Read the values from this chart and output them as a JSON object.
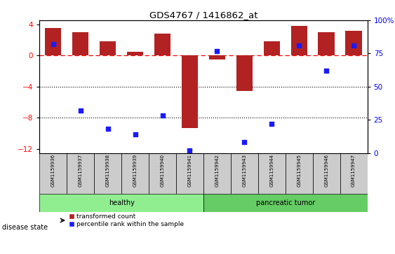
{
  "title": "GDS4767 / 1416862_at",
  "samples": [
    "GSM1159936",
    "GSM1159937",
    "GSM1159938",
    "GSM1159939",
    "GSM1159940",
    "GSM1159941",
    "GSM1159942",
    "GSM1159943",
    "GSM1159944",
    "GSM1159945",
    "GSM1159946",
    "GSM1159947"
  ],
  "bar_values": [
    3.5,
    3.0,
    1.8,
    0.5,
    2.8,
    -9.3,
    -0.5,
    -4.6,
    1.8,
    3.8,
    3.0,
    3.2
  ],
  "dot_values_pct": [
    82,
    32,
    18,
    14,
    28,
    2,
    77,
    8,
    22,
    81,
    62,
    81
  ],
  "bar_color": "#b22222",
  "dot_color": "#1a1aff",
  "ylim_left": [
    -12.5,
    4.5
  ],
  "ylim_right": [
    0,
    100
  ],
  "yticks_left": [
    4,
    0,
    -4,
    -8,
    -12
  ],
  "yticks_right": [
    100,
    75,
    50,
    25,
    0
  ],
  "hline_y": 0,
  "dotted_lines": [
    -4,
    -8
  ],
  "disease_groups": [
    {
      "label": "healthy",
      "start": 0,
      "end": 6,
      "color": "#90EE90"
    },
    {
      "label": "pancreatic tumor",
      "start": 6,
      "end": 12,
      "color": "#66CC66"
    }
  ],
  "disease_state_label": "disease state",
  "legend_bar_label": "transformed count",
  "legend_dot_label": "percentile rank within the sample",
  "bar_width": 0.6,
  "cell_color": "#cccccc"
}
